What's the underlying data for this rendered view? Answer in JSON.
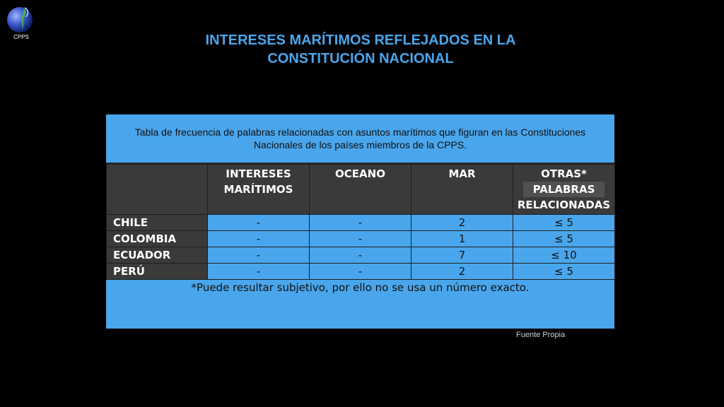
{
  "logo": {
    "text": "CPPS"
  },
  "title": {
    "line1": "INTERESES MARÍTIMOS REFLEJADOS EN LA",
    "line2": "CONSTITUCIÓN NACIONAL"
  },
  "table": {
    "caption": "Tabla de frecuencia de palabras relacionadas con asuntos marítimos que figuran en las Constituciones Nacionales de los países miembros de la CPPS.",
    "headers": {
      "col1_line1": "INTERESES",
      "col1_line2": "MARÍTIMOS",
      "col2": "OCEANO",
      "col3": "MAR",
      "col4_line1": "OTRAS*",
      "col4_line2": "PALABRAS",
      "col4_line3": "RELACIONADAS"
    },
    "rows": [
      {
        "country": "CHILE",
        "intereses": "-",
        "oceano": "-",
        "mar": "2",
        "otras": "≤ 5"
      },
      {
        "country": "COLOMBIA",
        "intereses": "-",
        "oceano": "-",
        "mar": "1",
        "otras": "≤ 5"
      },
      {
        "country": "ECUADOR",
        "intereses": "-",
        "oceano": "-",
        "mar": "7",
        "otras": "≤ 10"
      },
      {
        "country": "PERÚ",
        "intereses": "-",
        "oceano": "-",
        "mar": "2",
        "otras": "≤ 5"
      }
    ],
    "footnote": "*Puede resultar subjetivo, por ello no se usa un número exacto."
  },
  "source": "Fuente Propia",
  "colors": {
    "accent": "#4aa6ec",
    "header_bg": "#3a3a3a",
    "background": "#000000"
  }
}
